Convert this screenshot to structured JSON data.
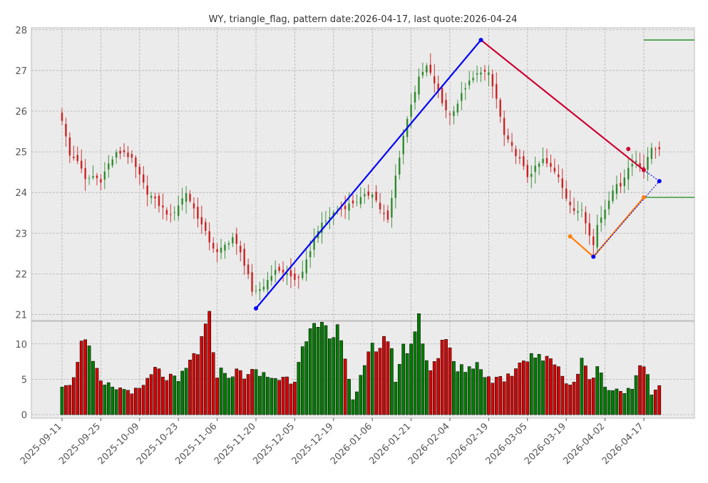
{
  "chart_data": [
    {
      "type": "candlestick",
      "title": "WY, triangle_flag, pattern date:2026-04-17, last quote:2026-04-24",
      "ylim": [
        20.85,
        28.05
      ],
      "y_ticks": [
        21,
        22,
        23,
        24,
        25,
        26,
        27,
        28
      ],
      "x_ticks": [
        "2025-09-11",
        "2025-09-25",
        "2025-10-09",
        "2025-10-23",
        "2025-11-06",
        "2025-11-20",
        "2025-12-05",
        "2025-12-19",
        "2026-01-06",
        "2026-01-21",
        "2026-02-04",
        "2026-02-19",
        "2026-03-05",
        "2026-03-19",
        "2026-04-02",
        "2026-04-17"
      ],
      "x_tick_index": [
        0,
        10,
        20,
        30,
        40,
        50,
        60,
        70,
        80,
        90,
        100,
        110,
        120,
        130,
        140,
        150
      ],
      "n_bars": 155,
      "grid": true,
      "close_anchors": [
        [
          0,
          25.8
        ],
        [
          2,
          24.9
        ],
        [
          4,
          24.8
        ],
        [
          6,
          24.3
        ],
        [
          8,
          24.4
        ],
        [
          10,
          24.3
        ],
        [
          12,
          24.7
        ],
        [
          14,
          24.95
        ],
        [
          16,
          25.0
        ],
        [
          18,
          24.8
        ],
        [
          20,
          24.4
        ],
        [
          22,
          24.0
        ],
        [
          24,
          23.8
        ],
        [
          26,
          23.6
        ],
        [
          28,
          23.4
        ],
        [
          30,
          23.7
        ],
        [
          32,
          24.0
        ],
        [
          34,
          23.6
        ],
        [
          36,
          23.2
        ],
        [
          38,
          22.8
        ],
        [
          40,
          22.5
        ],
        [
          42,
          22.7
        ],
        [
          44,
          22.9
        ],
        [
          46,
          22.5
        ],
        [
          48,
          22.0
        ],
        [
          49,
          21.5
        ],
        [
          50,
          21.55
        ],
        [
          52,
          21.7
        ],
        [
          54,
          22.0
        ],
        [
          56,
          22.1
        ],
        [
          58,
          22.0
        ],
        [
          60,
          21.85
        ],
        [
          62,
          22.0
        ],
        [
          64,
          22.6
        ],
        [
          66,
          23.1
        ],
        [
          68,
          23.3
        ],
        [
          70,
          23.5
        ],
        [
          72,
          23.6
        ],
        [
          74,
          23.7
        ],
        [
          76,
          23.8
        ],
        [
          78,
          23.9
        ],
        [
          80,
          24.0
        ],
        [
          82,
          23.6
        ],
        [
          84,
          23.3
        ],
        [
          86,
          24.4
        ],
        [
          88,
          25.4
        ],
        [
          90,
          26.2
        ],
        [
          92,
          26.8
        ],
        [
          94,
          27.1
        ],
        [
          96,
          26.7
        ],
        [
          98,
          26.2
        ],
        [
          100,
          25.9
        ],
        [
          102,
          26.2
        ],
        [
          104,
          26.6
        ],
        [
          106,
          26.8
        ],
        [
          108,
          27.0
        ],
        [
          110,
          26.9
        ],
        [
          112,
          26.3
        ],
        [
          114,
          25.4
        ],
        [
          116,
          25.1
        ],
        [
          118,
          24.8
        ],
        [
          120,
          24.4
        ],
        [
          122,
          24.6
        ],
        [
          124,
          24.8
        ],
        [
          126,
          24.6
        ],
        [
          128,
          24.4
        ],
        [
          130,
          23.9
        ],
        [
          132,
          23.5
        ],
        [
          134,
          23.6
        ],
        [
          136,
          23.0
        ],
        [
          137,
          22.7
        ],
        [
          138,
          23.2
        ],
        [
          140,
          23.6
        ],
        [
          142,
          24.1
        ],
        [
          144,
          24.2
        ],
        [
          146,
          24.6
        ],
        [
          148,
          24.8
        ],
        [
          150,
          24.55
        ],
        [
          152,
          25.1
        ],
        [
          154,
          25.1
        ]
      ],
      "pattern_lines": [
        {
          "color": "#0000ff",
          "points": [
            [
              50,
              21.15
            ],
            [
              108,
              27.75
            ]
          ]
        },
        {
          "color": "#cc0033",
          "points": [
            [
              108,
              27.75
            ],
            [
              150,
              24.55
            ]
          ]
        },
        {
          "color": "#ff7f0e",
          "points": [
            [
              131,
              22.92
            ],
            [
              137,
              22.42
            ],
            [
              150,
              23.88
            ]
          ]
        }
      ],
      "pattern_markers": [
        {
          "x": 50,
          "y": 21.15,
          "color": "#0000ff"
        },
        {
          "x": 108,
          "y": 27.75,
          "color": "#0000ff"
        },
        {
          "x": 137,
          "y": 22.42,
          "color": "#0000ff"
        },
        {
          "x": 154,
          "y": 24.28,
          "color": "#0000ff"
        },
        {
          "x": 146,
          "y": 25.07,
          "color": "#cc0033"
        },
        {
          "x": 150,
          "y": 24.55,
          "color": "#cc0033"
        },
        {
          "x": 131,
          "y": 22.92,
          "color": "#ff7f0e"
        },
        {
          "x": 150,
          "y": 23.88,
          "color": "#ff7f0e"
        }
      ],
      "projection_lines": [
        {
          "color": "#0000ff",
          "points": [
            [
              150,
              24.55
            ],
            [
              154,
              24.28
            ]
          ]
        },
        {
          "color": "#0000ff",
          "points": [
            [
              137,
              22.42
            ],
            [
              154,
              24.28
            ]
          ]
        }
      ],
      "target_levels": [
        {
          "y": 27.75,
          "color": "#008000",
          "x_start": 150
        },
        {
          "y": 23.88,
          "color": "#008000",
          "x_start": 150
        }
      ]
    },
    {
      "type": "bar",
      "ylim": [
        -0.5,
        13.2
      ],
      "y_ticks": [
        0,
        5,
        10
      ],
      "volume_anchors": [
        [
          0,
          4.5
        ],
        [
          3,
          4.8
        ],
        [
          5,
          11.5
        ],
        [
          10,
          4.3
        ],
        [
          15,
          3.6
        ],
        [
          20,
          3.3
        ],
        [
          24,
          6.2
        ],
        [
          30,
          4.5
        ],
        [
          36,
          10.2
        ],
        [
          38,
          12.9
        ],
        [
          40,
          6.0
        ],
        [
          45,
          5.8
        ],
        [
          50,
          5.8
        ],
        [
          55,
          5.2
        ],
        [
          60,
          5.0
        ],
        [
          62,
          11.3
        ],
        [
          66,
          11.7
        ],
        [
          70,
          10.5
        ],
        [
          72,
          12.3
        ],
        [
          74,
          5.2
        ],
        [
          75,
          2.1
        ],
        [
          80,
          9.2
        ],
        [
          84,
          11.2
        ],
        [
          86,
          5.3
        ],
        [
          88,
          9.0
        ],
        [
          90,
          10.3
        ],
        [
          92,
          13.3
        ],
        [
          95,
          6.3
        ],
        [
          98,
          10.0
        ],
        [
          100,
          9.1
        ],
        [
          102,
          6.0
        ],
        [
          105,
          6.9
        ],
        [
          108,
          7.0
        ],
        [
          110,
          5.0
        ],
        [
          115,
          5.3
        ],
        [
          118,
          7.7
        ],
        [
          120,
          8.5
        ],
        [
          123,
          8.6
        ],
        [
          125,
          7.4
        ],
        [
          128,
          7.3
        ],
        [
          130,
          4.3
        ],
        [
          132,
          4.5
        ],
        [
          134,
          8.8
        ],
        [
          136,
          4.6
        ],
        [
          138,
          6.8
        ],
        [
          140,
          4.2
        ],
        [
          142,
          3.5
        ],
        [
          145,
          3.5
        ],
        [
          147,
          3.2
        ],
        [
          149,
          6.8
        ],
        [
          151,
          5.0
        ],
        [
          152,
          3.0
        ],
        [
          154,
          4.0
        ]
      ]
    }
  ]
}
